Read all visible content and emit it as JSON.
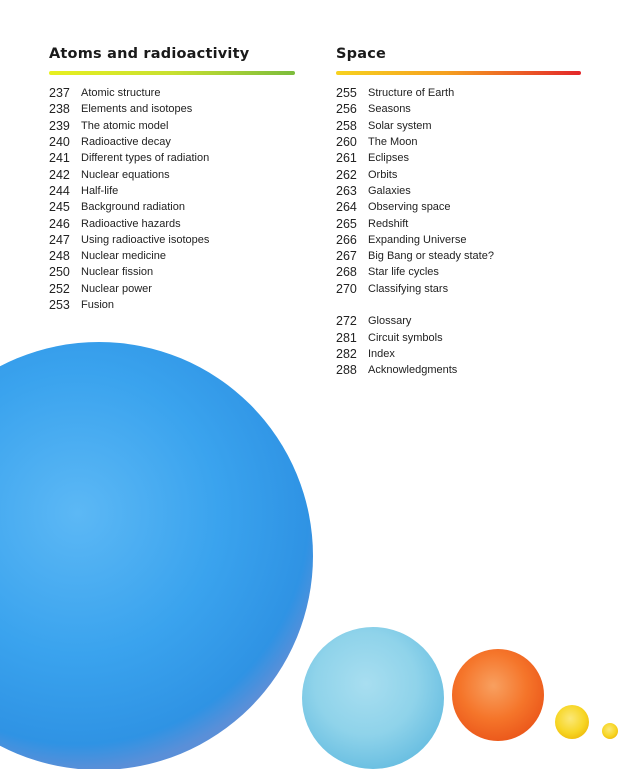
{
  "left": {
    "heading": "Atoms and radioactivity",
    "items": [
      {
        "page": "237",
        "title": "Atomic structure"
      },
      {
        "page": "238",
        "title": "Elements and isotopes"
      },
      {
        "page": "239",
        "title": "The atomic model"
      },
      {
        "page": "240",
        "title": "Radioactive decay"
      },
      {
        "page": "241",
        "title": "Different types of radiation"
      },
      {
        "page": "242",
        "title": "Nuclear equations"
      },
      {
        "page": "244",
        "title": "Half-life"
      },
      {
        "page": "245",
        "title": "Background radiation"
      },
      {
        "page": "246",
        "title": "Radioactive hazards"
      },
      {
        "page": "247",
        "title": "Using radioactive isotopes"
      },
      {
        "page": "248",
        "title": "Nuclear medicine"
      },
      {
        "page": "250",
        "title": "Nuclear fission"
      },
      {
        "page": "252",
        "title": "Nuclear power"
      },
      {
        "page": "253",
        "title": "Fusion"
      }
    ]
  },
  "right": {
    "heading": "Space",
    "items": [
      {
        "page": "255",
        "title": "Structure of Earth"
      },
      {
        "page": "256",
        "title": "Seasons"
      },
      {
        "page": "258",
        "title": "Solar system"
      },
      {
        "page": "260",
        "title": "The Moon"
      },
      {
        "page": "261",
        "title": "Eclipses"
      },
      {
        "page": "262",
        "title": "Orbits"
      },
      {
        "page": "263",
        "title": "Galaxies"
      },
      {
        "page": "264",
        "title": "Observing space"
      },
      {
        "page": "265",
        "title": "Redshift"
      },
      {
        "page": "266",
        "title": "Expanding Universe"
      },
      {
        "page": "267",
        "title": "Big Bang or steady state?"
      },
      {
        "page": "268",
        "title": "Star life cycles"
      },
      {
        "page": "270",
        "title": "Classifying stars"
      }
    ],
    "back_matter": [
      {
        "page": "272",
        "title": "Glossary"
      },
      {
        "page": "281",
        "title": "Circuit symbols"
      },
      {
        "page": "282",
        "title": "Index"
      },
      {
        "page": "288",
        "title": "Acknowledgments"
      }
    ]
  },
  "colors": {
    "blue": "#3aa3ee",
    "light_blue": "#8fd3ea",
    "orange": "#f5752a",
    "yellow": "#f7d625"
  }
}
